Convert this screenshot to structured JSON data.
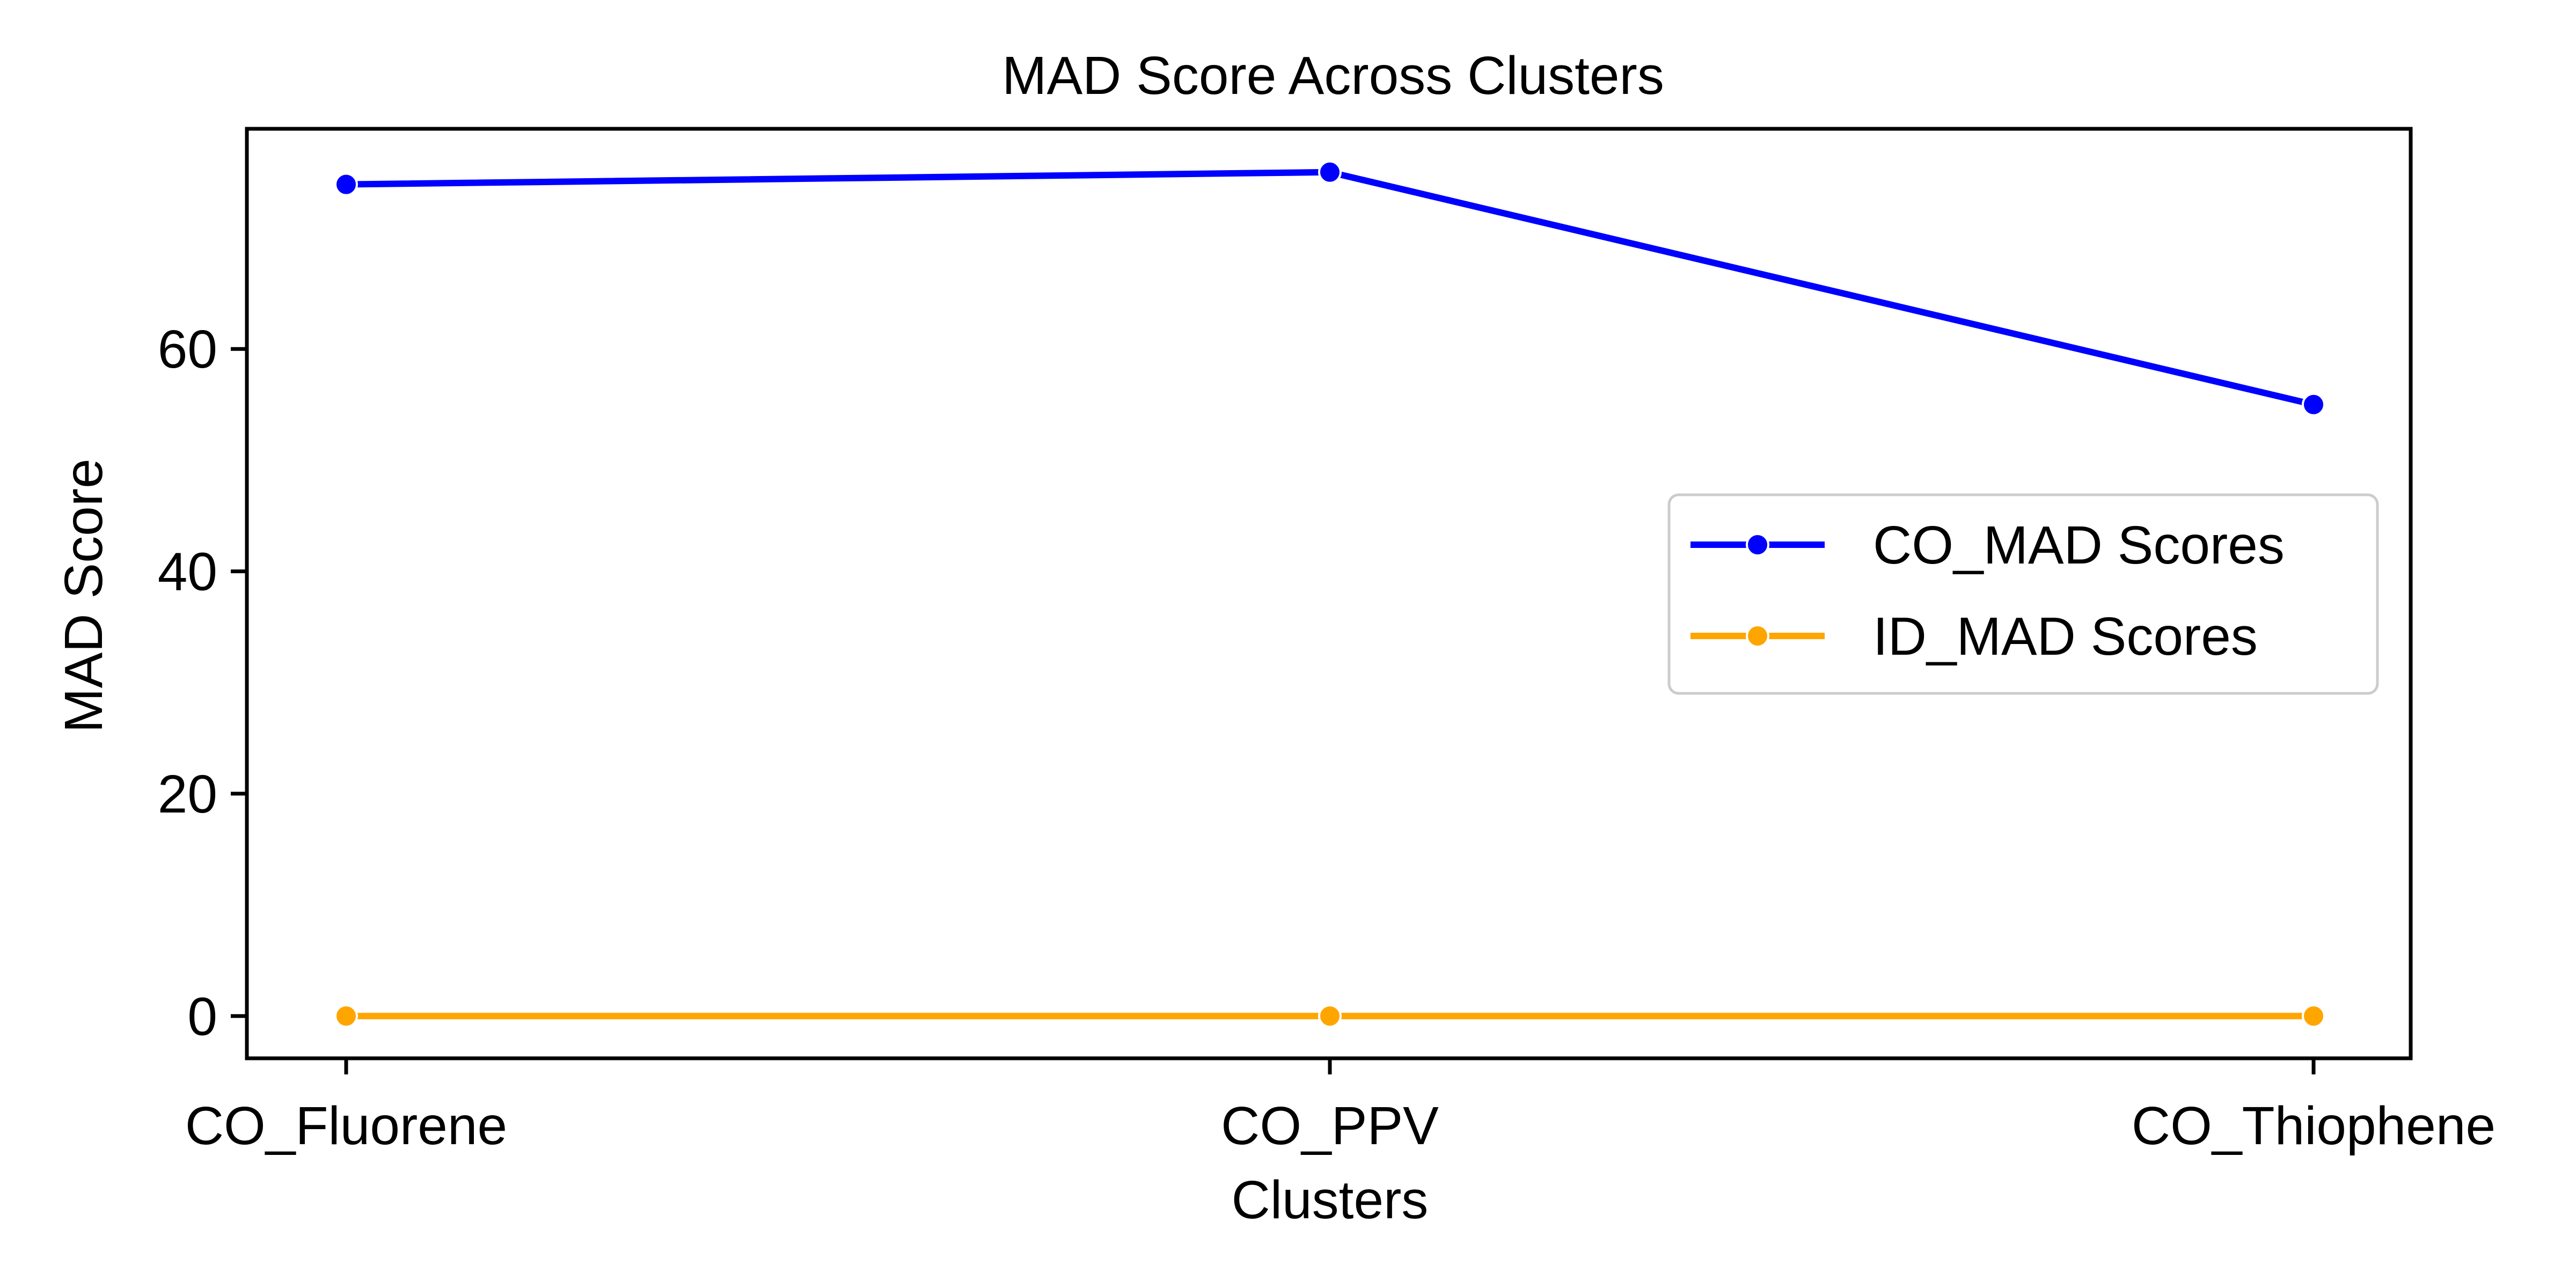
{
  "chart_data": {
    "type": "line",
    "title": "MAD Score Across Clusters",
    "xlabel": "Clusters",
    "ylabel": "MAD Score",
    "categories": [
      "CO_Fluorene",
      "CO_PPV",
      "CO_Thiophene"
    ],
    "yticks": [
      "0",
      "20",
      "40",
      "60"
    ],
    "ylim": [
      -3.8,
      79.8
    ],
    "grid": false,
    "legend_position": "center-right",
    "series": [
      {
        "name": "CO_MAD Scores",
        "color": "#0000ff",
        "values": [
          74.8,
          75.9,
          55.0
        ]
      },
      {
        "name": "ID_MAD Scores",
        "color": "#ffa500",
        "values": [
          0.0,
          0.0,
          0.0
        ]
      }
    ]
  }
}
